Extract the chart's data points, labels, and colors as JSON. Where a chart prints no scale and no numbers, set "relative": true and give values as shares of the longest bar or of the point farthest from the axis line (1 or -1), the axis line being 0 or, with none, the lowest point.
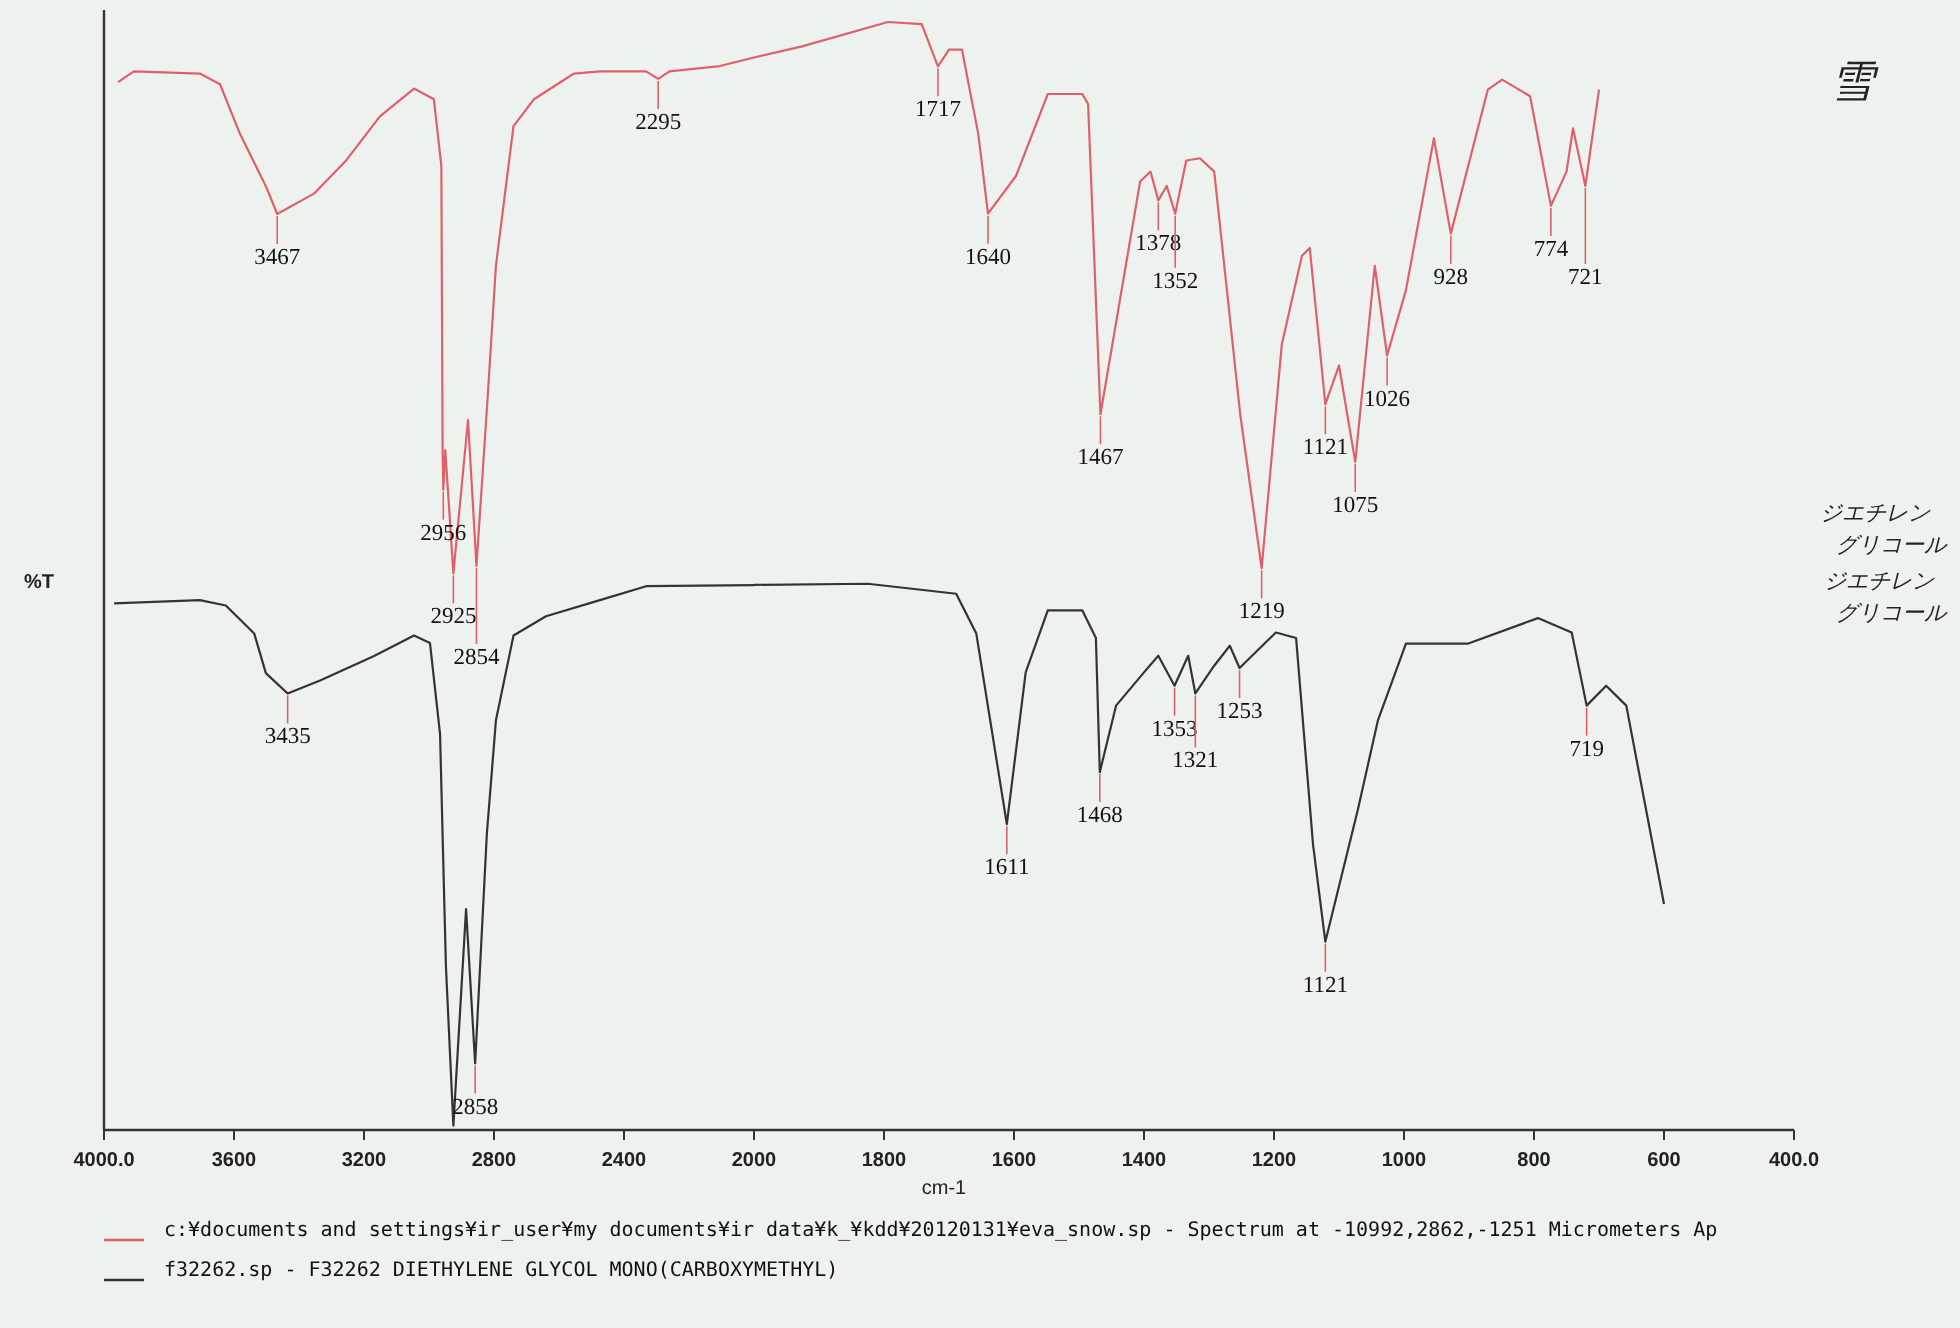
{
  "chart_data": [
    {
      "type": "line",
      "relative": true,
      "ylabel": "%T",
      "xlim": [
        4000,
        2000
      ],
      "xticks": [
        {
          "value": 4000,
          "label": "4000.0"
        },
        3600,
        3200,
        2800,
        2400,
        {
          "value": 2000,
          "label": null
        }
      ],
      "series": [
        {
          "color": "#e0606a",
          "x": [
            3957,
            3908,
            3705,
            3643,
            3582,
            3502,
            3467,
            3354,
            3255,
            3151,
            3046,
            2985,
            2962,
            2958,
            2956,
            2950,
            2925,
            2880,
            2854,
            2820,
            2794,
            2740,
            2677,
            2554,
            2474,
            2332,
            2295,
            2260,
            2105,
            2000
          ],
          "values": [
            0.977,
            0.987,
            0.985,
            0.975,
            0.929,
            0.88,
            0.854,
            0.873,
            0.904,
            0.945,
            0.971,
            0.961,
            0.899,
            0.63,
            0.597,
            0.634,
            0.519,
            0.662,
            0.526,
            0.681,
            0.806,
            0.936,
            0.961,
            0.985,
            0.987,
            0.987,
            0.98,
            0.987,
            0.992,
            1.0
          ]
        },
        {
          "color": "#333333",
          "x": [
            3969,
            3705,
            3625,
            3538,
            3502,
            3435,
            3335,
            3169,
            3046,
            2997,
            2966,
            2948,
            2925,
            2886,
            2858,
            2822,
            2794,
            2740,
            2640,
            2474,
            2332,
            2000
          ],
          "values": [
            0.491,
            0.494,
            0.489,
            0.463,
            0.426,
            0.407,
            0.419,
            0.442,
            0.461,
            0.454,
            0.369,
            0.153,
            0.004,
            0.206,
            0.062,
            0.276,
            0.382,
            0.461,
            0.479,
            0.494,
            0.507,
            0.508
          ]
        }
      ],
      "annotations": [
        {
          "text": "3467",
          "x": 3467,
          "y": 0.854
        },
        {
          "text": "2956",
          "x": 2956,
          "y": 0.597
        },
        {
          "text": "2925",
          "x": 2925,
          "y": 0.519
        },
        {
          "text": "2854",
          "x": 2854,
          "y": 0.526
        },
        {
          "text": "2295",
          "x": 2295,
          "y": 0.98
        },
        {
          "text": "3435",
          "x": 3435,
          "y": 0.407
        },
        {
          "text": "2858",
          "x": 2858,
          "y": 0.062
        }
      ]
    },
    {
      "type": "line",
      "relative": true,
      "xlabel": "cm-1",
      "legend": "bottom",
      "xlim": [
        2000,
        400
      ],
      "xticks": [
        2000,
        1800,
        1600,
        1400,
        1200,
        1000,
        800,
        600,
        {
          "value": 400,
          "label": "400.0"
        }
      ],
      "series": [
        {
          "name": "c:¥documents and settings¥ir_user¥my documents¥ir data¥k_¥kdd¥20120131¥eva_snow.sp - Spectrum at -10992,2862,-1251 Micrometers Ap",
          "color": "#e0606a",
          "x": [
            2000,
            1926,
            1794,
            1742,
            1717,
            1700,
            1680,
            1655,
            1640,
            1597,
            1548,
            1495,
            1486,
            1467,
            1406,
            1390,
            1378,
            1365,
            1352,
            1335,
            1314,
            1292,
            1252,
            1219,
            1188,
            1157,
            1145,
            1121,
            1100,
            1075,
            1045,
            1026,
            997,
            954,
            928,
            871,
            849,
            806,
            774,
            750,
            740,
            721,
            700
          ],
          "values": [
            0.968,
            0.978,
            1.0,
            0.998,
            0.96,
            0.975,
            0.975,
            0.899,
            0.827,
            0.861,
            0.935,
            0.935,
            0.926,
            0.646,
            0.856,
            0.865,
            0.839,
            0.852,
            0.827,
            0.875,
            0.877,
            0.865,
            0.646,
            0.507,
            0.709,
            0.789,
            0.796,
            0.655,
            0.69,
            0.603,
            0.78,
            0.699,
            0.758,
            0.895,
            0.809,
            0.939,
            0.948,
            0.933,
            0.834,
            0.865,
            0.904,
            0.852,
            0.939
          ]
        },
        {
          "name": "f32262.sp - F32262  DIETHYLENE GLYCOL MONO(CARBOXYMETHYL)",
          "color": "#333333",
          "x": [
            2000,
            1825,
            1689,
            1658,
            1611,
            1582,
            1548,
            1495,
            1474,
            1468,
            1443,
            1400,
            1378,
            1353,
            1332,
            1321,
            1292,
            1268,
            1253,
            1197,
            1166,
            1140,
            1121,
            1071,
            1040,
            997,
            901,
            794,
            742,
            719,
            689,
            658,
            600
          ],
          "values": [
            0.492,
            0.493,
            0.484,
            0.448,
            0.276,
            0.413,
            0.469,
            0.469,
            0.444,
            0.323,
            0.383,
            0.413,
            0.428,
            0.401,
            0.428,
            0.394,
            0.419,
            0.437,
            0.417,
            0.449,
            0.444,
            0.258,
            0.17,
            0.289,
            0.37,
            0.439,
            0.439,
            0.462,
            0.449,
            0.383,
            0.401,
            0.383,
            0.204
          ]
        }
      ],
      "annotations": [
        {
          "text": "1717",
          "x": 1717,
          "y": 0.96
        },
        {
          "text": "1640",
          "x": 1640,
          "y": 0.827
        },
        {
          "text": "1467",
          "x": 1467,
          "y": 0.646
        },
        {
          "text": "1378",
          "x": 1378,
          "y": 0.839
        },
        {
          "text": "1352",
          "x": 1352,
          "y": 0.827
        },
        {
          "text": "1219",
          "x": 1219,
          "y": 0.507
        },
        {
          "text": "1121",
          "x": 1121,
          "y": 0.655
        },
        {
          "text": "1075",
          "x": 1075,
          "y": 0.603
        },
        {
          "text": "1026",
          "x": 1026,
          "y": 0.699
        },
        {
          "text": "928",
          "x": 928,
          "y": 0.809
        },
        {
          "text": "774",
          "x": 774,
          "y": 0.834
        },
        {
          "text": "721",
          "x": 721,
          "y": 0.852
        },
        {
          "text": "1611",
          "x": 1611,
          "y": 0.276
        },
        {
          "text": "1468",
          "x": 1468,
          "y": 0.323
        },
        {
          "text": "1353",
          "x": 1353,
          "y": 0.401
        },
        {
          "text": "1321",
          "x": 1321,
          "y": 0.394
        },
        {
          "text": "1253",
          "x": 1253,
          "y": 0.417
        },
        {
          "text": "1121",
          "x": 1121,
          "y": 0.17
        },
        {
          "text": "719",
          "x": 719,
          "y": 0.383
        },
        "雪",
        "ジエチレン",
        "グリコール",
        "ジエチレン",
        "グリコール"
      ]
    }
  ]
}
